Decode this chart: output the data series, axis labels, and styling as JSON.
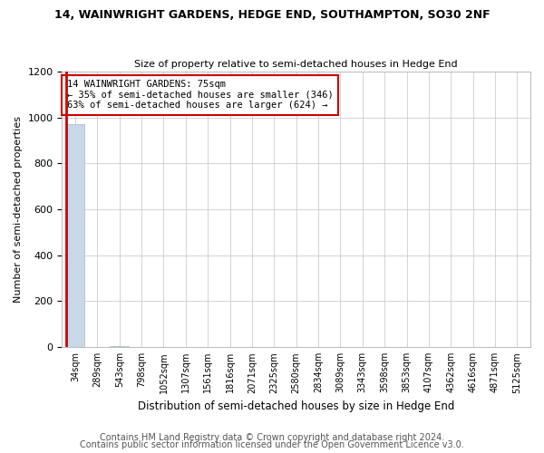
{
  "title": "14, WAINWRIGHT GARDENS, HEDGE END, SOUTHAMPTON, SO30 2NF",
  "subtitle": "Size of property relative to semi-detached houses in Hedge End",
  "xlabel": "Distribution of semi-detached houses by size in Hedge End",
  "ylabel": "Number of semi-detached properties",
  "annotation_line1": "14 WAINWRIGHT GARDENS: 75sqm",
  "annotation_line2": "← 35% of semi-detached houses are smaller (346)",
  "annotation_line3": "63% of semi-detached houses are larger (624) →",
  "footer_line1": "Contains HM Land Registry data © Crown copyright and database right 2024.",
  "footer_line2": "Contains public sector information licensed under the Open Government Licence v3.0.",
  "bar_labels": [
    "34sqm",
    "289sqm",
    "543sqm",
    "798sqm",
    "1052sqm",
    "1307sqm",
    "1561sqm",
    "1816sqm",
    "2071sqm",
    "2325sqm",
    "2580sqm",
    "2834sqm",
    "3089sqm",
    "3343sqm",
    "3598sqm",
    "3853sqm",
    "4107sqm",
    "4362sqm",
    "4616sqm",
    "4871sqm",
    "5125sqm"
  ],
  "bar_values": [
    970,
    2,
    3,
    2,
    1,
    1,
    1,
    1,
    2,
    1,
    1,
    1,
    1,
    1,
    1,
    1,
    1,
    1,
    1,
    1,
    1
  ],
  "bar_color": "#c8d8e8",
  "bar_edgecolor": "#a0b8cc",
  "highlight_red": "#cc0000",
  "ylim": [
    0,
    1200
  ],
  "yticks": [
    0,
    200,
    400,
    600,
    800,
    1000,
    1200
  ],
  "annotation_box_facecolor": "#ffffff",
  "annotation_box_edgecolor": "#cc0000",
  "background_color": "#ffffff",
  "grid_color": "#cccccc",
  "title_fontsize": 9,
  "subtitle_fontsize": 8,
  "footer_color": "#555555",
  "footer_fontsize": 7
}
